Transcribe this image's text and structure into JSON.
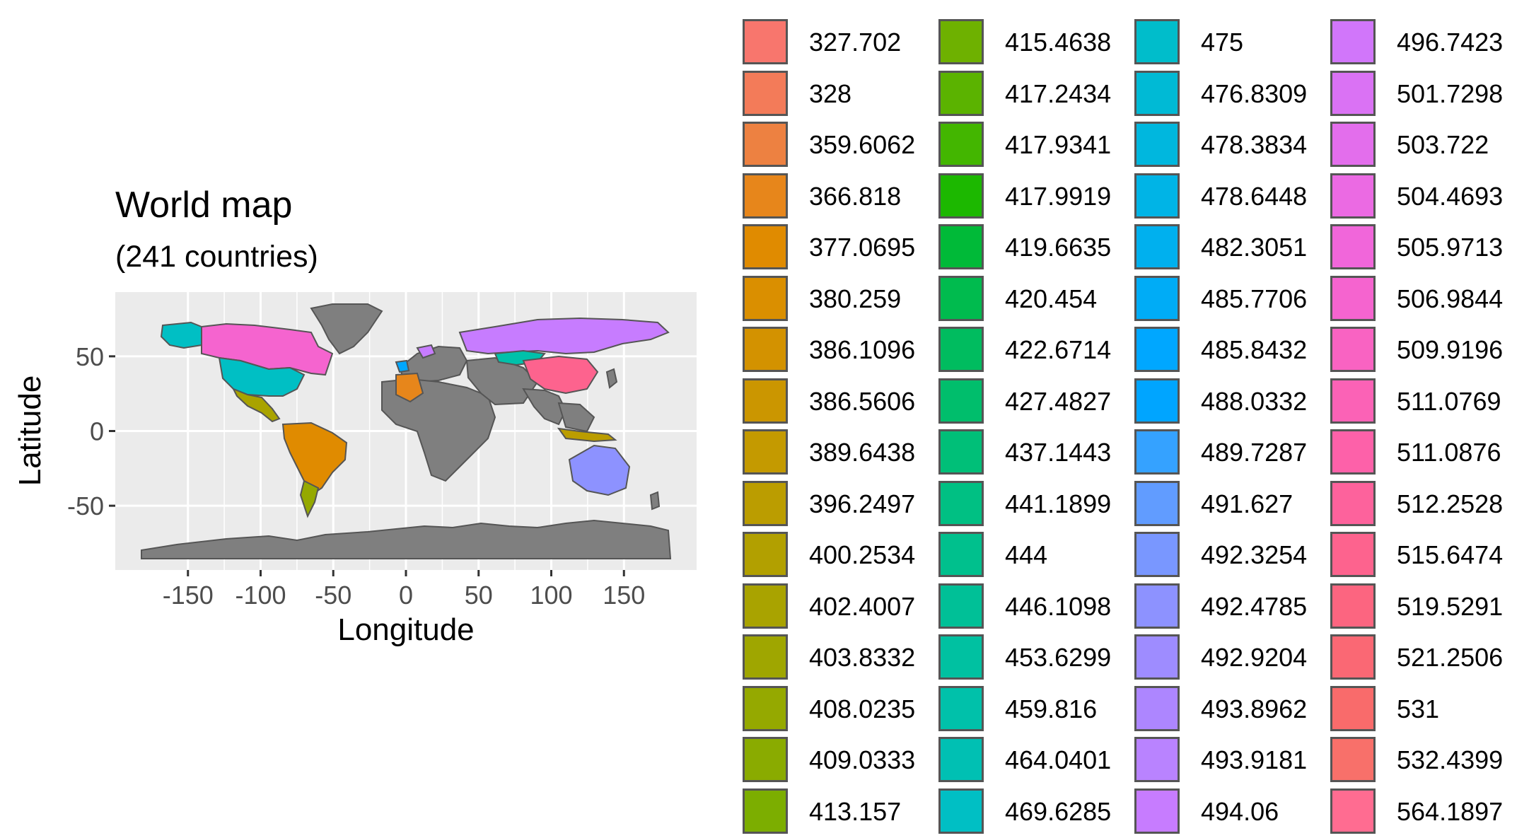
{
  "map": {
    "title": "World map",
    "subtitle": "(241 countries)",
    "x_axis_title": "Longitude",
    "y_axis_title": "Latitude",
    "x_ticks": [
      "-150",
      "-100",
      "-50",
      "0",
      "50",
      "100",
      "150"
    ],
    "x_tick_values": [
      -150,
      -100,
      -50,
      0,
      50,
      100,
      150
    ],
    "y_ticks": [
      "50",
      "0",
      "-50"
    ],
    "y_tick_values": [
      50,
      0,
      -50
    ],
    "xlim": [
      -200,
      200
    ],
    "ylim": [
      -93,
      93
    ],
    "panel_background": "#ebebeb",
    "grid_color": "#ffffff",
    "missing_country_color": "#7f7f7f",
    "border_color": "#555555"
  },
  "legend": {
    "items": [
      {
        "label": "327.702",
        "color": "#F8766D"
      },
      {
        "label": "328",
        "color": "#F37B59"
      },
      {
        "label": "359.6062",
        "color": "#ED8141"
      },
      {
        "label": "366.818",
        "color": "#E7861B"
      },
      {
        "label": "377.0695",
        "color": "#E08B00"
      },
      {
        "label": "380.259",
        "color": "#DA8F00"
      },
      {
        "label": "386.1096",
        "color": "#D39200"
      },
      {
        "label": "386.5606",
        "color": "#CB9600"
      },
      {
        "label": "389.6438",
        "color": "#C49A00"
      },
      {
        "label": "396.2497",
        "color": "#BB9D00"
      },
      {
        "label": "400.2534",
        "color": "#B2A000"
      },
      {
        "label": "402.4007",
        "color": "#A9A300"
      },
      {
        "label": "403.8332",
        "color": "#9FA600"
      },
      {
        "label": "408.0235",
        "color": "#95A900"
      },
      {
        "label": "409.0333",
        "color": "#8AAB00"
      },
      {
        "label": "413.157",
        "color": "#7CAE00"
      },
      {
        "label": "415.4638",
        "color": "#6EB100"
      },
      {
        "label": "417.2434",
        "color": "#5BB300"
      },
      {
        "label": "417.9341",
        "color": "#43B600"
      },
      {
        "label": "417.9919",
        "color": "#1CB800"
      },
      {
        "label": "419.6635",
        "color": "#00BA38"
      },
      {
        "label": "420.454",
        "color": "#00BB4E"
      },
      {
        "label": "422.6714",
        "color": "#00BC5F"
      },
      {
        "label": "427.4827",
        "color": "#00BE6C"
      },
      {
        "label": "437.1443",
        "color": "#00BF78"
      },
      {
        "label": "441.1899",
        "color": "#00C083"
      },
      {
        "label": "444",
        "color": "#00C08D"
      },
      {
        "label": "446.1098",
        "color": "#00C097"
      },
      {
        "label": "453.6299",
        "color": "#00C1A1"
      },
      {
        "label": "459.816",
        "color": "#00C1AA"
      },
      {
        "label": "464.0401",
        "color": "#00C0B3"
      },
      {
        "label": "469.6285",
        "color": "#00BFC4"
      },
      {
        "label": "475",
        "color": "#00BDCB"
      },
      {
        "label": "476.8309",
        "color": "#00BAD5"
      },
      {
        "label": "478.3834",
        "color": "#00B7DE"
      },
      {
        "label": "478.6448",
        "color": "#00B4E6"
      },
      {
        "label": "482.3051",
        "color": "#00B0EE"
      },
      {
        "label": "485.7706",
        "color": "#00ACF6"
      },
      {
        "label": "485.8432",
        "color": "#00A7FF"
      },
      {
        "label": "488.0332",
        "color": "#00A5FF"
      },
      {
        "label": "489.7287",
        "color": "#35A2FF"
      },
      {
        "label": "491.627",
        "color": "#619CFF"
      },
      {
        "label": "492.3254",
        "color": "#7997FF"
      },
      {
        "label": "492.4785",
        "color": "#8D92FF"
      },
      {
        "label": "492.9204",
        "color": "#9E8CFF"
      },
      {
        "label": "493.8962",
        "color": "#AD86FF"
      },
      {
        "label": "493.9181",
        "color": "#B983FF"
      },
      {
        "label": "494.06",
        "color": "#C77CFF"
      },
      {
        "label": "496.7423",
        "color": "#D176FA"
      },
      {
        "label": "501.7298",
        "color": "#DA72F4"
      },
      {
        "label": "503.722",
        "color": "#E36EEC"
      },
      {
        "label": "504.4693",
        "color": "#EB6AE3"
      },
      {
        "label": "505.9713",
        "color": "#F166DA"
      },
      {
        "label": "506.9844",
        "color": "#F564CF"
      },
      {
        "label": "509.9196",
        "color": "#F963C2"
      },
      {
        "label": "511.0769",
        "color": "#FB62B6"
      },
      {
        "label": "511.0876",
        "color": "#FD61A9"
      },
      {
        "label": "512.2528",
        "color": "#FD629C"
      },
      {
        "label": "515.6474",
        "color": "#FD638E"
      },
      {
        "label": "519.5291",
        "color": "#FC6580"
      },
      {
        "label": "521.2506",
        "color": "#FA6874"
      },
      {
        "label": "531",
        "color": "#F96B6B"
      },
      {
        "label": "532.4399",
        "color": "#F8706A"
      },
      {
        "label": "564.1897",
        "color": "#FF6C91"
      }
    ]
  }
}
